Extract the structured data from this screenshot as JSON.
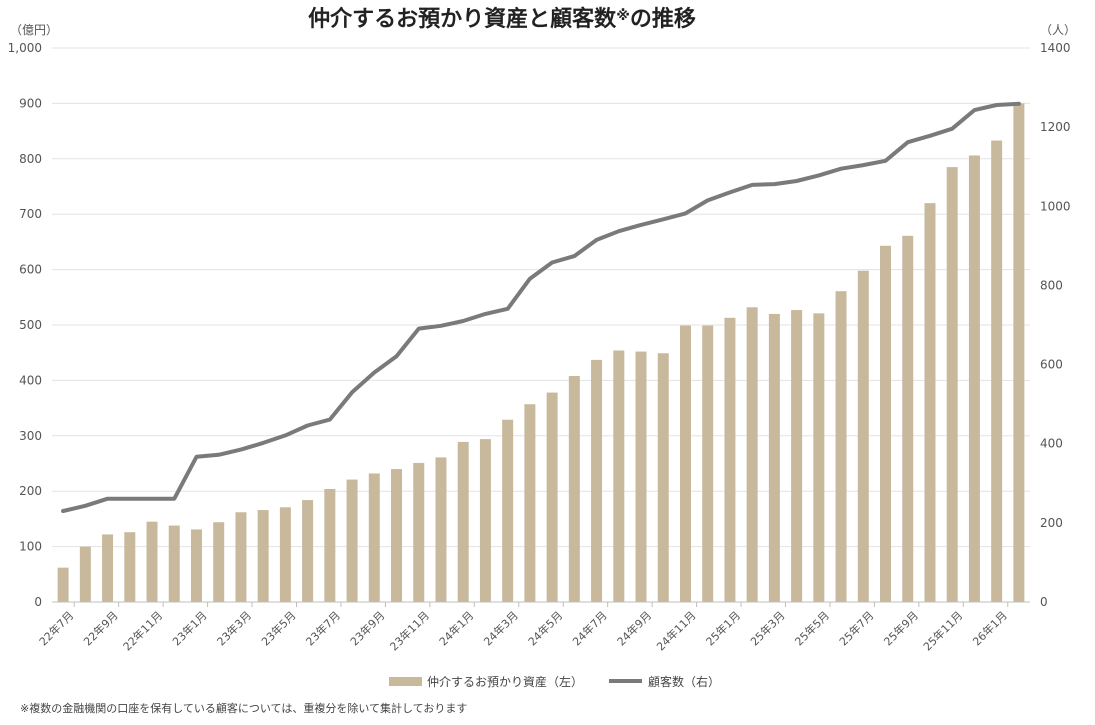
{
  "chart_data": {
    "type": "bar+line",
    "title": "仲介するお預かり資産と顧客数",
    "title_mark": "※",
    "title_tail": "の推移",
    "left_axis_label": "（億円）",
    "right_axis_label": "（人）",
    "left_ylim": [
      0,
      1000
    ],
    "right_ylim": [
      0,
      1400
    ],
    "left_ticks": [
      0,
      100,
      200,
      300,
      400,
      500,
      600,
      700,
      800,
      900,
      1000
    ],
    "left_tick_labels": [
      "0",
      "100",
      "200",
      "300",
      "400",
      "500",
      "600",
      "700",
      "800",
      "900",
      "1,000"
    ],
    "right_ticks": [
      0,
      200,
      400,
      600,
      800,
      1000,
      1200,
      1400
    ],
    "right_tick_labels": [
      "0",
      "200",
      "400",
      "600",
      "800",
      "1000",
      "1200",
      "1400"
    ],
    "categories": [
      "22年7月",
      "22年8月",
      "22年9月",
      "22年10月",
      "22年11月",
      "22年12月",
      "23年1月",
      "23年2月",
      "23年3月",
      "23年4月",
      "23年5月",
      "23年6月",
      "23年7月",
      "23年8月",
      "23年9月",
      "23年10月",
      "23年11月",
      "23年12月",
      "24年1月",
      "24年2月",
      "24年3月",
      "24年4月",
      "24年5月",
      "24年6月",
      "24年7月",
      "24年8月",
      "24年9月",
      "24年10月",
      "24年11月",
      "24年12月",
      "25年1月",
      "25年2月",
      "25年3月",
      "25年4月",
      "25年5月",
      "25年6月",
      "25年7月",
      "25年8月",
      "25年9月",
      "25年10月",
      "25年11月",
      "25年12月",
      "26年1月",
      "26年2月"
    ],
    "x_tick_labels": [
      "22年7月",
      "22年9月",
      "22年11月",
      "23年1月",
      "23年3月",
      "23年5月",
      "23年7月",
      "23年9月",
      "23年11月",
      "24年1月",
      "24年3月",
      "24年5月",
      "24年7月",
      "24年9月",
      "24年11月",
      "25年1月",
      "25年3月",
      "25年5月",
      "25年7月",
      "25年9月",
      "25年11月",
      "26年1月"
    ],
    "series": [
      {
        "name": "仲介するお預かり資産（左）",
        "type": "bar",
        "axis": "left",
        "color": "#c8b99d",
        "values": [
          62,
          100,
          122,
          126,
          145,
          138,
          131,
          144,
          162,
          166,
          171,
          184,
          204,
          221,
          232,
          240,
          251,
          261,
          289,
          294,
          329,
          357,
          378,
          408,
          437,
          454,
          452,
          449,
          499,
          499,
          513,
          532,
          520,
          527,
          521,
          561,
          598,
          643,
          661,
          720,
          785,
          806,
          833,
          900
        ]
      },
      {
        "name": "顧客数（右）",
        "type": "line",
        "axis": "right",
        "color": "#7a7a7a",
        "values": [
          230,
          243,
          261,
          261,
          261,
          261,
          367,
          372,
          385,
          402,
          421,
          446,
          461,
          530,
          580,
          621,
          691,
          698,
          710,
          728,
          741,
          817,
          858,
          874,
          915,
          937,
          953,
          967,
          982,
          1015,
          1035,
          1054,
          1056,
          1064,
          1078,
          1095,
          1104,
          1115,
          1162,
          1178,
          1196,
          1243,
          1256,
          1259
        ]
      }
    ],
    "footnote": "※複数の金融機関の口座を保有している顧客については、重複分を除いて集計しております"
  }
}
